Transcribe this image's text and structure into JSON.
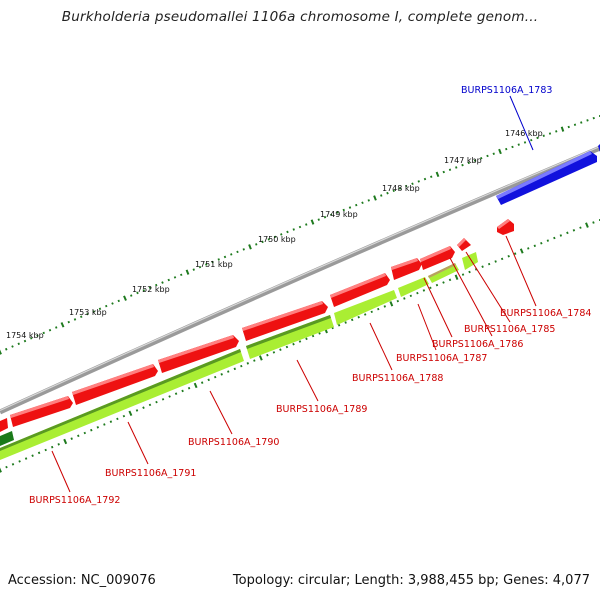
{
  "title": "Burkholderia pseudomallei 1106a chromosome I, complete genom...",
  "footer": {
    "accession": "Accession: NC_009076",
    "summary": "Topology: circular; Length: 3,988,455 bp; Genes: 4,077"
  },
  "colors": {
    "backbone": "#8a8a8a",
    "gene_red": "#ee1111",
    "gene_blue": "#1111dd",
    "cds_green": "#aaee33",
    "cds_dark_green": "#1a7a1a",
    "tick_green": "#1e7a1e",
    "label_red": "#cc0000",
    "label_blue": "#0000cc"
  },
  "scale_labels": [
    "1746 kbp",
    "1747 kbp",
    "1748 kbp",
    "1749 kbp",
    "1750 kbp",
    "1751 kbp",
    "1752 kbp",
    "1753 kbp",
    "1754 kbp"
  ],
  "gene_labels": [
    {
      "text": "BURPS1106A_1783",
      "color": "blue"
    },
    {
      "text": "BURPS1106A_1784",
      "color": "red"
    },
    {
      "text": "BURPS1106A_1785",
      "color": "red"
    },
    {
      "text": "BURPS1106A_1786",
      "color": "red"
    },
    {
      "text": "BURPS1106A_1787",
      "color": "red"
    },
    {
      "text": "BURPS1106A_1788",
      "color": "red"
    },
    {
      "text": "BURPS1106A_1789",
      "color": "red"
    },
    {
      "text": "BURPS1106A_1790",
      "color": "red"
    },
    {
      "text": "BURPS1106A_1791",
      "color": "red"
    },
    {
      "text": "BURPS1106A_1792",
      "color": "red"
    }
  ]
}
